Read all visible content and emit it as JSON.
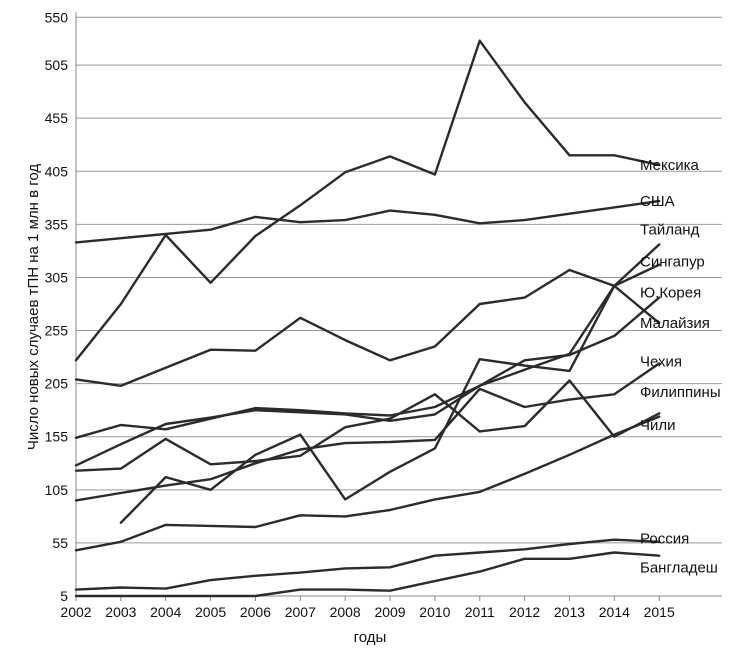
{
  "chart_data": {
    "type": "line",
    "title": "",
    "xlabel": "годы",
    "ylabel": "Число новых случаев тПН на 1 млн в год",
    "ylim": [
      5,
      555
    ],
    "xlim": [
      2002,
      2016.4
    ],
    "y_ticks": [
      5,
      55,
      105,
      155,
      205,
      255,
      305,
      355,
      405,
      455,
      505,
      550
    ],
    "x_ticks": [
      2002,
      2003,
      2004,
      2005,
      2006,
      2007,
      2008,
      2009,
      2010,
      2011,
      2012,
      2013,
      2014,
      2015
    ],
    "grid": "horizontal",
    "series": [
      {
        "name": "Мексика",
        "x": [
          2002,
          2003,
          2004,
          2005,
          2006,
          2007,
          2008,
          2009,
          2010,
          2011,
          2012,
          2013,
          2014,
          2015
        ],
        "values": [
          227,
          280,
          345,
          300,
          344,
          373,
          404,
          419,
          402,
          528,
          470,
          420,
          420,
          411
        ],
        "label_y": 411
      },
      {
        "name": "США",
        "x": [
          2002,
          2003,
          2004,
          2005,
          2006,
          2007,
          2008,
          2009,
          2010,
          2011,
          2012,
          2013,
          2014,
          2015
        ],
        "values": [
          338,
          342,
          346,
          350,
          362,
          357,
          359,
          368,
          364,
          356,
          359,
          365,
          371,
          377
        ],
        "label_y": 377
      },
      {
        "name": "Тайланд",
        "x": [
          2003,
          2004,
          2005,
          2006,
          2007,
          2008,
          2009,
          2010,
          2011,
          2012,
          2013,
          2014,
          2015
        ],
        "values": [
          74,
          117,
          105,
          138,
          157,
          96,
          122,
          144,
          228,
          222,
          217,
          297,
          336
        ],
        "label_y": 350
      },
      {
        "name": "Сингапур",
        "x": [
          2002,
          2003,
          2004,
          2005,
          2006,
          2007,
          2008,
          2009,
          2010,
          2011,
          2012,
          2013,
          2014,
          2015
        ],
        "values": [
          154,
          166,
          162,
          172,
          182,
          180,
          177,
          175,
          183,
          203,
          218,
          233,
          297,
          317
        ],
        "label_y": 320
      },
      {
        "name": "Ю.Корея",
        "x": [
          2002,
          2003,
          2004,
          2005,
          2006,
          2007,
          2008,
          2009,
          2010,
          2011,
          2012,
          2013,
          2014,
          2015
        ],
        "values": [
          128,
          148,
          167,
          173,
          180,
          178,
          176,
          170,
          176,
          203,
          227,
          232,
          250,
          286
        ],
        "label_y": 291
      },
      {
        "name": "Малайзия",
        "x": [
          2002,
          2003,
          2004,
          2005,
          2006,
          2007,
          2008,
          2009,
          2010,
          2011,
          2012,
          2013,
          2014,
          2015
        ],
        "values": [
          209,
          203,
          220,
          237,
          236,
          267,
          246,
          227,
          240,
          280,
          286,
          312,
          297,
          262
        ],
        "label_y": 262
      },
      {
        "name": "Чехия",
        "x": [
          2002,
          2003,
          2004,
          2005,
          2006,
          2007,
          2008,
          2009,
          2010,
          2011,
          2012,
          2013,
          2014,
          2015
        ],
        "values": [
          123,
          125,
          153,
          129,
          132,
          137,
          164,
          172,
          195,
          160,
          165,
          208,
          155,
          177
        ],
        "label_y": 226
      },
      {
        "name": "Филиппины",
        "x": [
          2002,
          2003,
          2004,
          2005,
          2006,
          2007,
          2008,
          2009,
          2010,
          2011,
          2012,
          2013,
          2014,
          2015
        ],
        "values": [
          95,
          102,
          109,
          115,
          130,
          143,
          149,
          150,
          152,
          200,
          183,
          190,
          195,
          224
        ],
        "label_y": 197
      },
      {
        "name": "Чили",
        "x": [
          2002,
          2003,
          2004,
          2005,
          2006,
          2007,
          2008,
          2009,
          2010,
          2011,
          2012,
          2013,
          2014,
          2015
        ],
        "values": [
          48,
          56,
          72,
          71,
          70,
          81,
          80,
          86,
          96,
          103,
          120,
          138,
          157,
          174
        ],
        "label_y": 166
      },
      {
        "name": "Россия",
        "x": [
          2002,
          2003,
          2004,
          2005,
          2006,
          2007,
          2008,
          2009,
          2010,
          2011,
          2012,
          2013,
          2014,
          2015
        ],
        "values": [
          11,
          13,
          12,
          20,
          24,
          27,
          31,
          32,
          43,
          46,
          49,
          54,
          58,
          56
        ],
        "label_y": 59
      },
      {
        "name": "Бангладеш",
        "x": [
          2002,
          2003,
          2004,
          2005,
          2006,
          2007,
          2008,
          2009,
          2010,
          2011,
          2012,
          2013,
          2014,
          2015
        ],
        "values": [
          5,
          5,
          5,
          5,
          5,
          11,
          11,
          10,
          19,
          28,
          40,
          40,
          46,
          43
        ],
        "label_y": 32
      }
    ]
  }
}
